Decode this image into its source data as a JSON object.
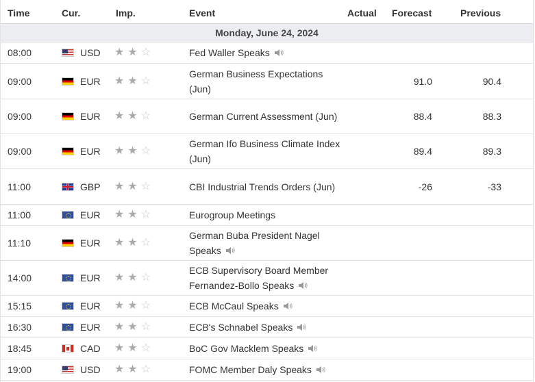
{
  "headers": {
    "time": "Time",
    "currency": "Cur.",
    "importance": "Imp.",
    "event": "Event",
    "actual": "Actual",
    "forecast": "Forecast",
    "previous": "Previous"
  },
  "day_label": "Monday, June 24, 2024",
  "rows": [
    {
      "time": "08:00",
      "flag": "us-flag-icon",
      "currency": "USD",
      "importance": 2,
      "event": "Fed Waller Speaks",
      "speech": true,
      "actual": "",
      "forecast": "",
      "previous": ""
    },
    {
      "time": "09:00",
      "flag": "de-flag-icon",
      "currency": "EUR",
      "importance": 2,
      "event": "German Business Expectations (Jun)",
      "speech": false,
      "actual": "",
      "forecast": "91.0",
      "previous": "90.4"
    },
    {
      "time": "09:00",
      "flag": "de-flag-icon",
      "currency": "EUR",
      "importance": 2,
      "event": "German Current Assessment (Jun)",
      "speech": false,
      "actual": "",
      "forecast": "88.4",
      "previous": "88.3"
    },
    {
      "time": "09:00",
      "flag": "de-flag-icon",
      "currency": "EUR",
      "importance": 2,
      "event": "German Ifo Business Climate Index (Jun)",
      "speech": false,
      "actual": "",
      "forecast": "89.4",
      "previous": "89.3"
    },
    {
      "time": "11:00",
      "flag": "gb-flag-icon",
      "currency": "GBP",
      "importance": 2,
      "event": "CBI Industrial Trends Orders (Jun)",
      "speech": false,
      "actual": "",
      "forecast": "-26",
      "previous": "-33"
    },
    {
      "time": "11:00",
      "flag": "eu-flag-icon",
      "currency": "EUR",
      "importance": 2,
      "event": "Eurogroup Meetings",
      "speech": false,
      "actual": "",
      "forecast": "",
      "previous": ""
    },
    {
      "time": "11:10",
      "flag": "de-flag-icon",
      "currency": "EUR",
      "importance": 2,
      "event": "German Buba President Nagel Speaks",
      "speech": true,
      "actual": "",
      "forecast": "",
      "previous": ""
    },
    {
      "time": "14:00",
      "flag": "eu-flag-icon",
      "currency": "EUR",
      "importance": 2,
      "event": "ECB Supervisory Board Member Fernandez-Bollo Speaks",
      "speech": true,
      "actual": "",
      "forecast": "",
      "previous": ""
    },
    {
      "time": "15:15",
      "flag": "eu-flag-icon",
      "currency": "EUR",
      "importance": 2,
      "event": "ECB McCaul Speaks",
      "speech": true,
      "actual": "",
      "forecast": "",
      "previous": ""
    },
    {
      "time": "16:30",
      "flag": "eu-flag-icon",
      "currency": "EUR",
      "importance": 2,
      "event": "ECB's Schnabel Speaks",
      "speech": true,
      "actual": "",
      "forecast": "",
      "previous": ""
    },
    {
      "time": "18:45",
      "flag": "ca-flag-icon",
      "currency": "CAD",
      "importance": 2,
      "event": "BoC Gov Macklem Speaks",
      "speech": true,
      "actual": "",
      "forecast": "",
      "previous": ""
    },
    {
      "time": "19:00",
      "flag": "us-flag-icon",
      "currency": "USD",
      "importance": 2,
      "event": "FOMC Member Daly Speaks",
      "speech": true,
      "actual": "",
      "forecast": "",
      "previous": ""
    }
  ]
}
